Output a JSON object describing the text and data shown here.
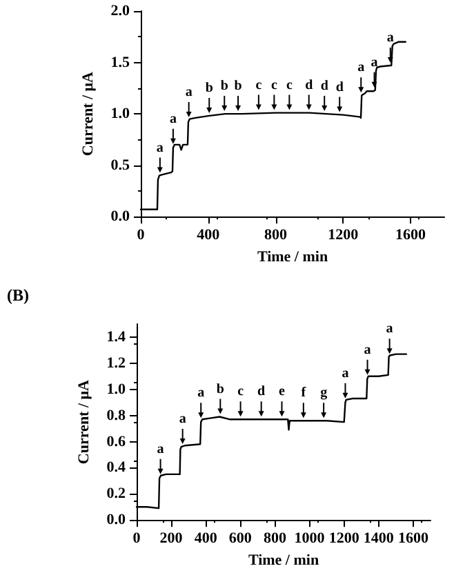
{
  "chart_data": [
    {
      "type": "line",
      "xlabel": "Time / min",
      "ylabel": "Current / μA",
      "xlim": [
        0,
        1800
      ],
      "xticks": [
        0,
        400,
        800,
        1200,
        1600
      ],
      "ylim": [
        0,
        2.0
      ],
      "yticks": [
        {
          "value": 0,
          "label": "0.0"
        },
        0.5,
        {
          "value": 1,
          "label": "1.0"
        },
        1.5,
        {
          "value": 2,
          "label": "2.0"
        }
      ],
      "grid": false,
      "marker": "none",
      "line_style": "solid",
      "series": [
        {
          "color": "#000000",
          "x": [
            0,
            50,
            98,
            102,
            110,
            130,
            180,
            188,
            192,
            200,
            230,
            240,
            250,
            278,
            282,
            290,
            320,
            400,
            500,
            600,
            800,
            900,
            1000,
            1100,
            1200,
            1300,
            1305,
            1310,
            1330,
            1340,
            1380,
            1390,
            1395,
            1400,
            1420,
            1480,
            1486,
            1492,
            1500,
            1530,
            1570
          ],
          "values": [
            0.07,
            0.07,
            0.07,
            0.36,
            0.4,
            0.41,
            0.43,
            0.44,
            0.67,
            0.7,
            0.7,
            0.65,
            0.7,
            0.7,
            0.92,
            0.95,
            0.96,
            0.98,
            1.0,
            1.0,
            1.01,
            1.01,
            1.01,
            1.0,
            0.99,
            0.97,
            0.96,
            1.18,
            1.2,
            1.22,
            1.22,
            1.23,
            1.42,
            1.45,
            1.46,
            1.47,
            1.47,
            1.66,
            1.68,
            1.7,
            1.7
          ]
        }
      ],
      "annotations": [
        {
          "text": "a",
          "x": 114,
          "y": 0.4
        },
        {
          "text": "a",
          "x": 192,
          "y": 0.68
        },
        {
          "text": "a",
          "x": 285,
          "y": 0.94
        },
        {
          "text": "b",
          "x": 406,
          "y": 0.98
        },
        {
          "text": "b",
          "x": 496,
          "y": 1.0
        },
        {
          "text": "b",
          "x": 577,
          "y": 1.0
        },
        {
          "text": "c",
          "x": 699,
          "y": 1.01
        },
        {
          "text": "c",
          "x": 791,
          "y": 1.01
        },
        {
          "text": "c",
          "x": 881,
          "y": 1.01
        },
        {
          "text": "d",
          "x": 997,
          "y": 1.01
        },
        {
          "text": "d",
          "x": 1089,
          "y": 1.0
        },
        {
          "text": "d",
          "x": 1179,
          "y": 0.99
        },
        {
          "text": "a",
          "x": 1306,
          "y": 1.18
        },
        {
          "text": "a",
          "x": 1385,
          "y": 1.23
        },
        {
          "text": "a",
          "x": 1480,
          "y": 1.47
        }
      ]
    },
    {
      "type": "line",
      "title": "(B)",
      "xlabel": "Time / min",
      "ylabel": "Current / μA",
      "xlim": [
        0,
        1700
      ],
      "xticks": [
        0,
        200,
        400,
        600,
        800,
        1000,
        1200,
        1400,
        1600
      ],
      "ylim": [
        0,
        1.5
      ],
      "yticks": [
        {
          "value": 0,
          "label": "0.0"
        },
        0.2,
        0.4,
        0.6,
        0.8,
        {
          "value": 1,
          "label": "1.0"
        },
        1.2,
        1.4
      ],
      "grid": false,
      "marker": "none",
      "line_style": "solid",
      "series": [
        {
          "color": "#000000",
          "x": [
            0,
            60,
            128,
            132,
            140,
            170,
            250,
            253,
            258,
            280,
            368,
            372,
            380,
            430,
            480,
            540,
            600,
            700,
            850,
            875,
            880,
            885,
            950,
            1000,
            1100,
            1200,
            1207,
            1212,
            1250,
            1330,
            1334,
            1340,
            1400,
            1455,
            1459,
            1465,
            1500,
            1560
          ],
          "values": [
            0.1,
            0.1,
            0.09,
            0.32,
            0.34,
            0.35,
            0.35,
            0.54,
            0.56,
            0.57,
            0.58,
            0.75,
            0.77,
            0.78,
            0.79,
            0.77,
            0.77,
            0.77,
            0.77,
            0.77,
            0.69,
            0.76,
            0.76,
            0.76,
            0.76,
            0.75,
            0.9,
            0.92,
            0.93,
            0.93,
            1.08,
            1.1,
            1.1,
            1.11,
            1.25,
            1.26,
            1.27,
            1.27
          ]
        }
      ],
      "annotations": [
        {
          "text": "a",
          "x": 138,
          "y": 0.33
        },
        {
          "text": "a",
          "x": 266,
          "y": 0.56
        },
        {
          "text": "a",
          "x": 372,
          "y": 0.76
        },
        {
          "text": "b",
          "x": 484,
          "y": 0.79
        },
        {
          "text": "c",
          "x": 601,
          "y": 0.77
        },
        {
          "text": "d",
          "x": 721,
          "y": 0.77
        },
        {
          "text": "e",
          "x": 840,
          "y": 0.77
        },
        {
          "text": "f",
          "x": 965,
          "y": 0.76
        },
        {
          "text": "g",
          "x": 1082,
          "y": 0.76
        },
        {
          "text": "a",
          "x": 1207,
          "y": 0.91
        },
        {
          "text": "a",
          "x": 1335,
          "y": 1.09
        },
        {
          "text": "a",
          "x": 1463,
          "y": 1.25
        }
      ]
    }
  ]
}
